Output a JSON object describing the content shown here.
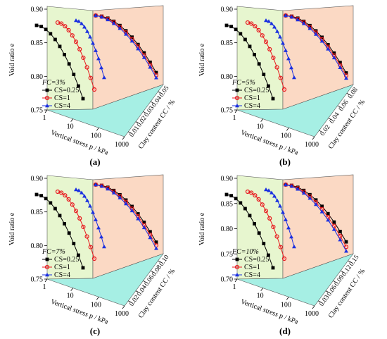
{
  "chart_data": [
    {
      "type": "line",
      "panel_label": "(a)",
      "x_title": "Vertical stress p / kPa",
      "y_title": "Void ratio e",
      "z_title": "Clay content CC / %",
      "x_ticks": [
        "1",
        "10",
        "100",
        "1000"
      ],
      "y_ticks": [
        "0.75",
        "0.80",
        "0.85",
        "0.90"
      ],
      "z_ticks": [
        "0.01",
        "0.02",
        "0.03",
        "0.04",
        "0.05"
      ],
      "ylim": [
        0.75,
        0.9
      ],
      "xscale": "log",
      "fc_label": "FC=3%",
      "legend_position": "lower-left",
      "series": [
        {
          "name": "CS=0.25",
          "color": "#000000",
          "marker": "square",
          "line_x0": 1.0,
          "line_y0": 0.882,
          "line_y1": 0.769,
          "back_y0": 0.899,
          "back_y1": 0.807
        },
        {
          "name": "CS=1",
          "color": "#e8191f",
          "marker": "circle",
          "line_x0": 1.0,
          "line_y0": 0.884,
          "line_y1": 0.78,
          "back_y0": 0.899,
          "back_y1": 0.81
        },
        {
          "name": "CS=4",
          "color": "#1a2fe0",
          "marker": "triangle",
          "line_x0": 1.0,
          "line_y0": 0.886,
          "line_y1": 0.798,
          "back_y0": 0.899,
          "back_y1": 0.813
        }
      ]
    },
    {
      "type": "line",
      "panel_label": "(b)",
      "x_title": "Vertical stress p / kPa",
      "y_title": "Void ratio e",
      "z_title": "Clay content CC / %",
      "x_ticks": [
        "1",
        "10",
        "100",
        "1000"
      ],
      "y_ticks": [
        "0.75",
        "0.80",
        "0.85",
        "0.90"
      ],
      "z_ticks": [
        "0.02",
        "0.04",
        "0.06",
        "0.08"
      ],
      "ylim": [
        0.75,
        0.9
      ],
      "xscale": "log",
      "fc_label": "FC=5%",
      "legend_position": "lower-left",
      "series": [
        {
          "name": "CS=0.25",
          "color": "#000000",
          "marker": "square",
          "line_x0": 1.0,
          "line_y0": 0.882,
          "line_y1": 0.764,
          "back_y0": 0.899,
          "back_y1": 0.803
        },
        {
          "name": "CS=1",
          "color": "#e8191f",
          "marker": "circle",
          "line_x0": 1.0,
          "line_y0": 0.885,
          "line_y1": 0.772,
          "back_y0": 0.899,
          "back_y1": 0.805
        },
        {
          "name": "CS=4",
          "color": "#1a2fe0",
          "marker": "triangle",
          "line_x0": 1.0,
          "line_y0": 0.887,
          "line_y1": 0.79,
          "back_y0": 0.899,
          "back_y1": 0.808
        }
      ]
    },
    {
      "type": "line",
      "panel_label": "(c)",
      "x_title": "Vertical stress p / kPa",
      "y_title": "Void ratio e",
      "z_title": "Clay content CC / %",
      "x_ticks": [
        "1",
        "10",
        "100",
        "1000"
      ],
      "y_ticks": [
        "0.75",
        "0.80",
        "0.85",
        "0.90"
      ],
      "z_ticks": [
        "0.02",
        "0.04",
        "0.06",
        "0.08",
        "0.10"
      ],
      "ylim": [
        0.75,
        0.9
      ],
      "xscale": "log",
      "fc_label": "FC=7%",
      "legend_position": "lower-left",
      "series": [
        {
          "name": "CS=0.25",
          "color": "#000000",
          "marker": "square",
          "line_x0": 1.0,
          "line_y0": 0.882,
          "line_y1": 0.766,
          "back_y0": 0.899,
          "back_y1": 0.802
        },
        {
          "name": "CS=1",
          "color": "#e8191f",
          "marker": "circle",
          "line_x0": 1.0,
          "line_y0": 0.885,
          "line_y1": 0.775,
          "back_y0": 0.899,
          "back_y1": 0.797
        },
        {
          "name": "CS=4",
          "color": "#1a2fe0",
          "marker": "triangle",
          "line_x0": 1.0,
          "line_y0": 0.888,
          "line_y1": 0.79,
          "back_y0": 0.899,
          "back_y1": 0.795
        }
      ]
    },
    {
      "type": "line",
      "panel_label": "(d)",
      "x_title": "Vertical stress p / kPa",
      "y_title": "Void ratio e",
      "z_title": "Clay content CC / %",
      "x_ticks": [
        "1",
        "10",
        "100",
        "1000"
      ],
      "y_ticks": [
        "0.70",
        "0.75",
        "0.80",
        "0.85",
        "0.90"
      ],
      "z_ticks": [
        "0.03",
        "0.06",
        "0.09",
        "0.12",
        "0.15"
      ],
      "ylim": [
        0.7,
        0.9
      ],
      "xscale": "log",
      "fc_label": "FC=10%",
      "legend_position": "lower-left",
      "series": [
        {
          "name": "CS=0.25",
          "color": "#000000",
          "marker": "square",
          "line_x0": 1.0,
          "line_y0": 0.88,
          "line_y1": 0.752,
          "back_y0": 0.899,
          "back_y1": 0.806
        },
        {
          "name": "CS=1",
          "color": "#e8191f",
          "marker": "circle",
          "line_x0": 1.0,
          "line_y0": 0.886,
          "line_y1": 0.765,
          "back_y0": 0.899,
          "back_y1": 0.78
        },
        {
          "name": "CS=4",
          "color": "#1a2fe0",
          "marker": "triangle",
          "line_x0": 1.0,
          "line_y0": 0.891,
          "line_y1": 0.781,
          "back_y0": 0.899,
          "back_y1": 0.763
        }
      ]
    }
  ],
  "colors": {
    "left_wall": "#e7f6cf",
    "right_wall": "#fbd9c4",
    "floor": "#a6efe4",
    "edge": "#555555"
  }
}
